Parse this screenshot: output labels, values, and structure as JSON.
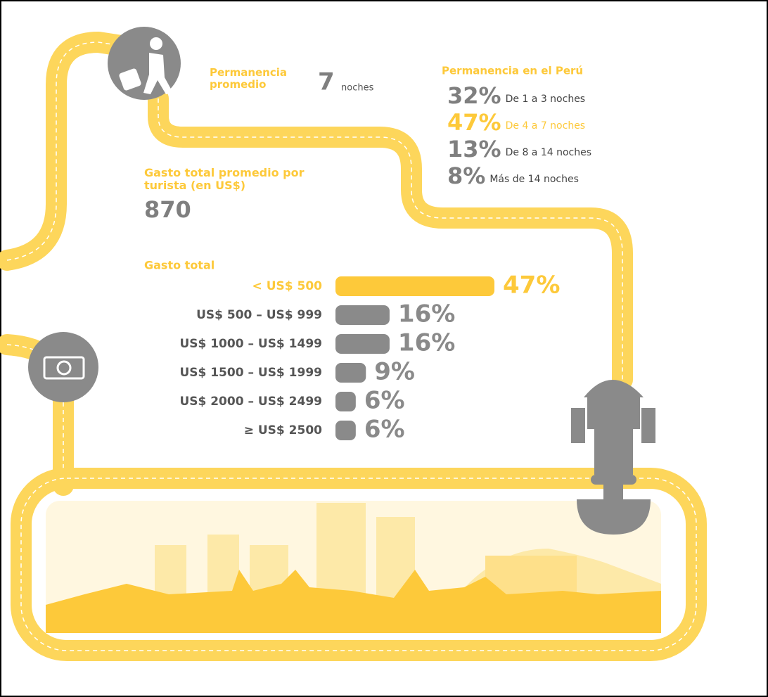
{
  "stay_average": {
    "label": "Permanencia promedio",
    "value": "7",
    "unit": "noches"
  },
  "stay_distribution": {
    "title": "Permanencia en el Perú",
    "items": [
      {
        "percent": "32%",
        "label": "De 1 a 3 noches"
      },
      {
        "percent": "47%",
        "label": "De 4 a 7 noches"
      },
      {
        "percent": "13%",
        "label": "De 8 a 14 noches"
      },
      {
        "percent": "8%",
        "label": "Más de 14 noches"
      }
    ]
  },
  "spend_average": {
    "label": "Gasto total promedio por turista  (en US$)",
    "value": "870"
  },
  "chart_data": {
    "type": "bar",
    "orientation": "horizontal",
    "title": "Gasto total",
    "categories": [
      "< US$ 500",
      "US$ 500 – US$ 999",
      "US$ 1000 – US$ 1499",
      "US$ 1500 – US$ 1999",
      "US$ 2000 – US$ 2499",
      "≥ US$ 2500"
    ],
    "values": [
      47,
      16,
      16,
      9,
      6,
      6
    ],
    "value_labels": [
      "47%",
      "16%",
      "16%",
      "9%",
      "6%",
      "6%"
    ],
    "colors": [
      "#fdc93a",
      "#8a8a8a",
      "#8a8a8a",
      "#8a8a8a",
      "#8a8a8a",
      "#8a8a8a"
    ]
  }
}
